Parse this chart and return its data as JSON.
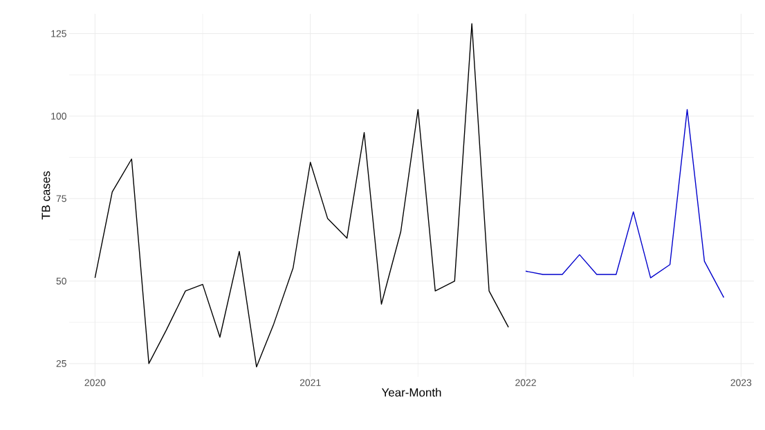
{
  "chart_data": {
    "type": "line",
    "xlabel": "Year-Month",
    "ylabel": "TB cases",
    "series": [
      {
        "color": "#000000",
        "x": [
          "2020-01",
          "2020-02",
          "2020-03",
          "2020-04",
          "2020-05",
          "2020-06",
          "2020-07",
          "2020-08",
          "2020-09",
          "2020-10",
          "2020-11",
          "2020-12",
          "2021-01",
          "2021-02",
          "2021-03",
          "2021-04",
          "2021-05",
          "2021-06",
          "2021-07",
          "2021-08",
          "2021-09",
          "2021-10",
          "2021-11",
          "2021-12"
        ],
        "values": [
          51,
          77,
          87,
          25,
          35,
          47,
          49,
          33,
          59,
          24,
          37,
          54,
          86,
          69,
          63,
          95,
          43,
          65,
          102,
          47,
          50,
          128,
          47,
          36
        ]
      },
      {
        "color": "#0000cc",
        "x": [
          "2022-01",
          "2022-02",
          "2022-03",
          "2022-04",
          "2022-05",
          "2022-06",
          "2022-07",
          "2022-08",
          "2022-09",
          "2022-10",
          "2022-11",
          "2022-12"
        ],
        "values": [
          53,
          52,
          52,
          58,
          52,
          52,
          71,
          51,
          55,
          102,
          56,
          45
        ]
      }
    ],
    "xlim": [
      "2019-11-17",
      "2023-01-24"
    ],
    "xticks": [
      "2020",
      "2021",
      "2022",
      "2023"
    ],
    "ylim": [
      21,
      131
    ],
    "yticks": [
      25,
      50,
      75,
      100,
      125
    ],
    "grid": true,
    "marker": "none",
    "line_style": "solid"
  }
}
